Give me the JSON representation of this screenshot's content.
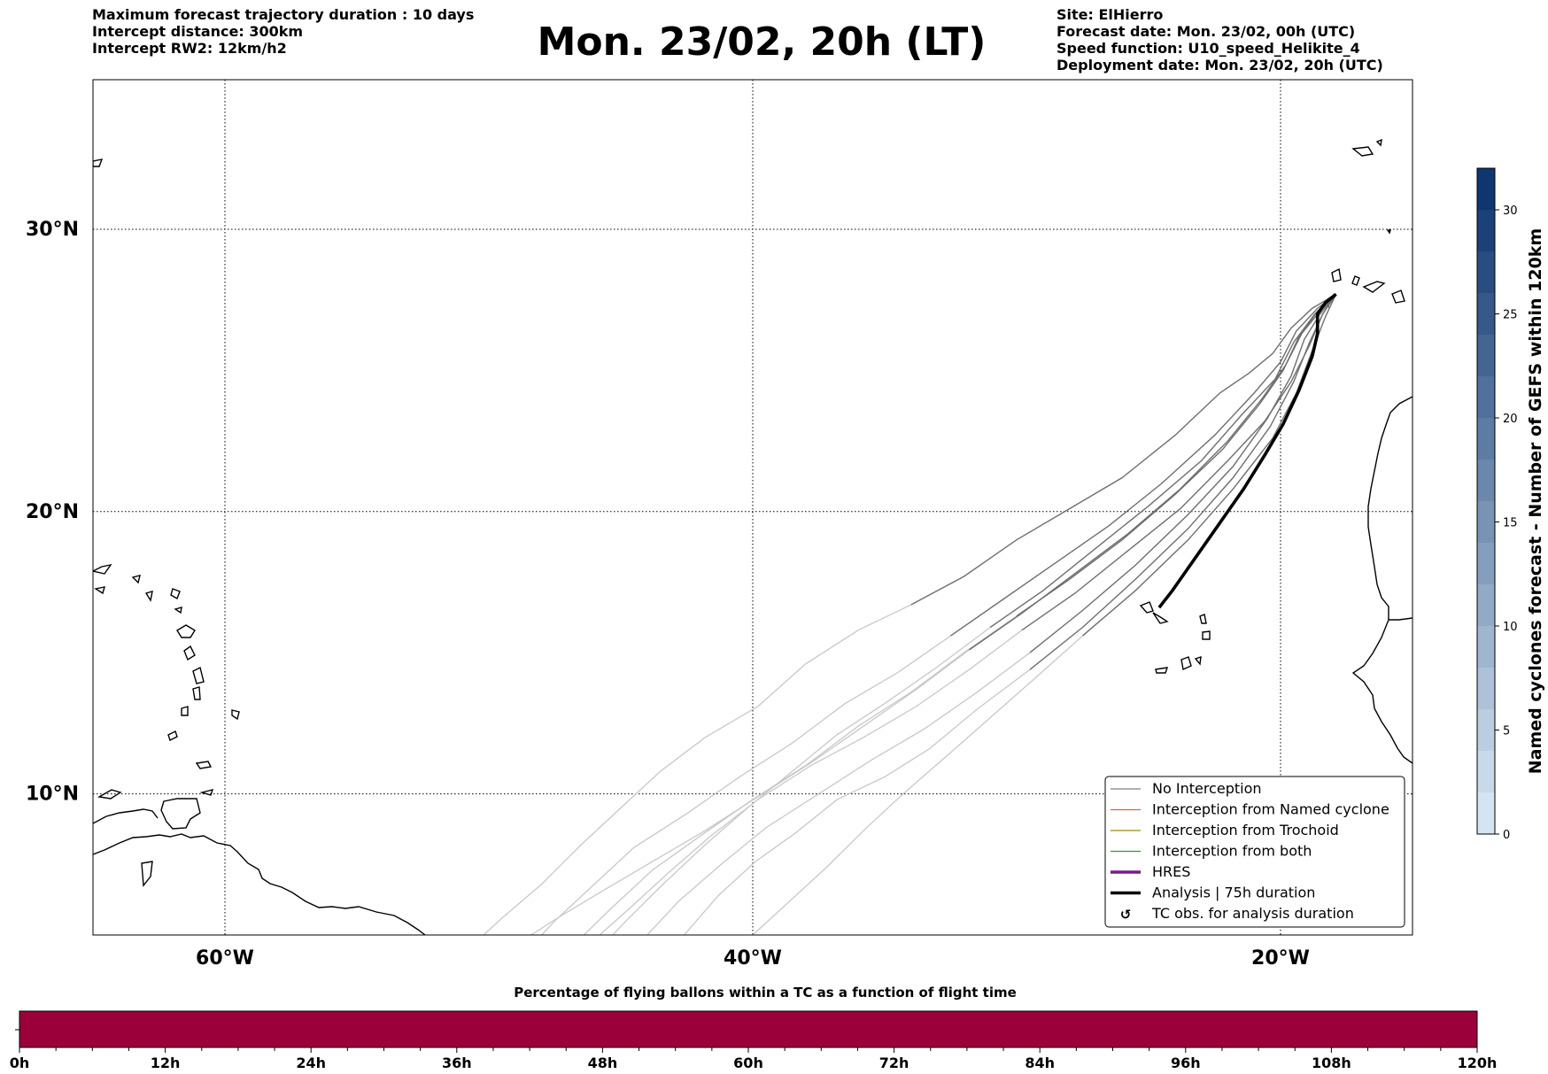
{
  "header": {
    "left_lines": [
      "Maximum forecast trajectory duration : 10 days",
      "Intercept distance: 300km",
      "Intercept RW2: 12km/h2"
    ],
    "title": "Mon. 23/02, 20h (LT)",
    "right_lines": [
      "Site: ElHierro",
      "Forecast date: Mon. 23/02, 00h (UTC)",
      "Speed function: U10_speed_Helikite_4",
      "Deployment date: Mon. 23/02, 20h (UTC)"
    ]
  },
  "map": {
    "lat_labels": [
      "30°N",
      "20°N",
      "10°N"
    ],
    "lat_values": [
      30,
      20,
      10
    ],
    "lon_labels": [
      "60°W",
      "40°W",
      "20°W"
    ],
    "lon_values": [
      -60,
      -40,
      -20
    ],
    "extent": {
      "lon_min": -65,
      "lon_max": -15,
      "lat_min": 5,
      "lat_max": 35.3
    },
    "gridlines": true,
    "trajectory_start": {
      "lon": -17.9,
      "lat": 27.7
    },
    "trajectories": [
      [
        [
          -17.9,
          27.7
        ],
        [
          -18.8,
          27.2
        ],
        [
          -19.6,
          26.5
        ],
        [
          -20.3,
          25.6
        ],
        [
          -21.2,
          24.9
        ],
        [
          -22.3,
          24.2
        ],
        [
          -24.0,
          22.7
        ],
        [
          -26.0,
          21.2
        ],
        [
          -28.0,
          20.1
        ],
        [
          -30.0,
          19.0
        ],
        [
          -32.0,
          17.7
        ],
        [
          -34.0,
          16.7
        ],
        [
          -36.0,
          15.8
        ],
        [
          -38.0,
          14.6
        ],
        [
          -39.8,
          13.1
        ],
        [
          -41.8,
          12.0
        ],
        [
          -43.5,
          10.8
        ],
        [
          -45.0,
          9.5
        ],
        [
          -46.5,
          8.2
        ],
        [
          -48.0,
          6.8
        ],
        [
          -49.5,
          5.6
        ],
        [
          -50.2,
          5.0
        ]
      ],
      [
        [
          -17.9,
          27.7
        ],
        [
          -18.6,
          27.2
        ],
        [
          -19.4,
          26.4
        ],
        [
          -20.0,
          25.3
        ],
        [
          -21.0,
          24.2
        ],
        [
          -22.5,
          22.7
        ],
        [
          -24.5,
          21.0
        ],
        [
          -26.5,
          19.5
        ],
        [
          -28.5,
          18.2
        ],
        [
          -30.5,
          16.9
        ],
        [
          -32.5,
          15.6
        ],
        [
          -34.5,
          14.3
        ],
        [
          -36.5,
          13.2
        ],
        [
          -38.5,
          11.8
        ],
        [
          -40.5,
          10.6
        ],
        [
          -42.5,
          9.3
        ],
        [
          -44.5,
          8.1
        ],
        [
          -46.0,
          6.8
        ],
        [
          -47.5,
          5.5
        ],
        [
          -48.0,
          5.0
        ]
      ],
      [
        [
          -17.9,
          27.7
        ],
        [
          -18.5,
          27.1
        ],
        [
          -19.3,
          26.2
        ],
        [
          -19.9,
          25.0
        ],
        [
          -20.8,
          23.8
        ],
        [
          -22.2,
          22.2
        ],
        [
          -24.0,
          20.6
        ],
        [
          -26.0,
          19.0
        ],
        [
          -28.0,
          17.6
        ],
        [
          -30.0,
          16.3
        ],
        [
          -32.0,
          15.0
        ],
        [
          -34.0,
          13.6
        ],
        [
          -36.0,
          12.4
        ],
        [
          -38.0,
          11.0
        ],
        [
          -40.0,
          9.8
        ],
        [
          -42.0,
          8.5
        ],
        [
          -43.8,
          7.3
        ],
        [
          -45.3,
          6.0
        ],
        [
          -46.4,
          5.0
        ]
      ],
      [
        [
          -17.9,
          27.7
        ],
        [
          -18.7,
          27.0
        ],
        [
          -19.5,
          26.0
        ],
        [
          -20.2,
          24.7
        ],
        [
          -21.5,
          23.4
        ],
        [
          -23.0,
          21.8
        ],
        [
          -25.0,
          20.2
        ],
        [
          -27.0,
          18.7
        ],
        [
          -29.0,
          17.2
        ],
        [
          -31.0,
          15.9
        ],
        [
          -33.0,
          14.5
        ],
        [
          -35.0,
          13.2
        ],
        [
          -36.8,
          12.1
        ],
        [
          -38.5,
          10.8
        ],
        [
          -40.2,
          9.5
        ],
        [
          -41.8,
          8.2
        ],
        [
          -43.4,
          6.8
        ],
        [
          -44.8,
          5.5
        ],
        [
          -45.3,
          5.0
        ]
      ],
      [
        [
          -17.9,
          27.7
        ],
        [
          -18.5,
          27.0
        ],
        [
          -19.1,
          26.1
        ],
        [
          -19.6,
          24.8
        ],
        [
          -20.5,
          23.3
        ],
        [
          -21.8,
          21.6
        ],
        [
          -23.5,
          19.9
        ],
        [
          -25.5,
          18.1
        ],
        [
          -27.5,
          16.5
        ],
        [
          -29.5,
          15.0
        ],
        [
          -31.5,
          13.6
        ],
        [
          -33.5,
          12.3
        ],
        [
          -35.5,
          11.2
        ],
        [
          -37.5,
          10.0
        ],
        [
          -39.5,
          8.8
        ],
        [
          -41.2,
          7.5
        ],
        [
          -42.8,
          6.2
        ],
        [
          -44.0,
          5.0
        ]
      ],
      [
        [
          -17.9,
          27.7
        ],
        [
          -18.4,
          27.0
        ],
        [
          -18.9,
          26.0
        ],
        [
          -19.5,
          24.6
        ],
        [
          -20.4,
          23.0
        ],
        [
          -21.8,
          21.2
        ],
        [
          -23.5,
          19.4
        ],
        [
          -25.5,
          17.6
        ],
        [
          -27.5,
          15.9
        ],
        [
          -29.5,
          14.4
        ],
        [
          -31.5,
          13.0
        ],
        [
          -33.3,
          11.6
        ],
        [
          -35.0,
          10.6
        ],
        [
          -36.8,
          9.8
        ],
        [
          -38.4,
          8.6
        ],
        [
          -39.9,
          7.6
        ],
        [
          -41.3,
          6.4
        ],
        [
          -42.6,
          5.0
        ]
      ],
      [
        [
          -17.9,
          27.7
        ],
        [
          -18.3,
          26.9
        ],
        [
          -18.8,
          25.7
        ],
        [
          -19.4,
          24.2
        ],
        [
          -20.3,
          22.6
        ],
        [
          -21.8,
          20.8
        ],
        [
          -23.5,
          19.0
        ],
        [
          -25.5,
          17.2
        ],
        [
          -27.5,
          15.6
        ],
        [
          -29.3,
          14.1
        ],
        [
          -31.0,
          12.7
        ],
        [
          -32.7,
          11.3
        ],
        [
          -34.3,
          10.0
        ],
        [
          -35.8,
          8.7
        ],
        [
          -37.2,
          7.4
        ],
        [
          -38.6,
          6.2
        ],
        [
          -40.0,
          5.0
        ]
      ],
      [
        [
          -17.9,
          27.7
        ],
        [
          -18.4,
          27.0
        ],
        [
          -18.9,
          25.9
        ],
        [
          -19.6,
          24.6
        ],
        [
          -20.6,
          23.2
        ],
        [
          -22.0,
          21.8
        ],
        [
          -23.8,
          20.1
        ],
        [
          -25.8,
          18.6
        ],
        [
          -27.8,
          17.1
        ],
        [
          -29.8,
          15.8
        ],
        [
          -31.8,
          14.4
        ],
        [
          -33.8,
          13.1
        ],
        [
          -35.8,
          12.0
        ],
        [
          -37.8,
          11.0
        ],
        [
          -39.8,
          9.8
        ],
        [
          -41.6,
          8.5
        ],
        [
          -43.2,
          7.2
        ],
        [
          -44.6,
          6.0
        ],
        [
          -45.8,
          5.0
        ]
      ],
      [
        [
          -17.9,
          27.7
        ],
        [
          -18.6,
          27.1
        ],
        [
          -19.2,
          26.3
        ],
        [
          -19.8,
          25.2
        ],
        [
          -20.7,
          24.0
        ],
        [
          -22.0,
          22.5
        ],
        [
          -23.8,
          20.8
        ],
        [
          -25.8,
          19.2
        ],
        [
          -27.8,
          17.8
        ],
        [
          -29.8,
          16.4
        ],
        [
          -31.8,
          15.1
        ],
        [
          -33.8,
          13.7
        ],
        [
          -35.8,
          12.4
        ],
        [
          -37.8,
          11.1
        ],
        [
          -39.8,
          9.9
        ],
        [
          -41.8,
          8.7
        ],
        [
          -43.8,
          7.6
        ],
        [
          -45.8,
          6.5
        ],
        [
          -47.4,
          5.6
        ],
        [
          -48.4,
          5.0
        ]
      ]
    ],
    "analysis_track": [
      [
        -17.9,
        27.7
      ],
      [
        -18.3,
        27.4
      ],
      [
        -18.6,
        27.0
      ],
      [
        -18.6,
        26.3
      ],
      [
        -18.8,
        25.5
      ],
      [
        -19.3,
        24.3
      ],
      [
        -19.9,
        23.1
      ],
      [
        -20.6,
        22.0
      ],
      [
        -21.4,
        20.8
      ],
      [
        -22.3,
        19.6
      ],
      [
        -23.2,
        18.4
      ],
      [
        -24.1,
        17.2
      ],
      [
        -24.6,
        16.6
      ]
    ],
    "dark_fraction": 0.55
  },
  "legend": {
    "items": [
      {
        "label": "No Interception",
        "color": "#808080",
        "width": 1.2,
        "kind": "line"
      },
      {
        "label": "Interception from Named cyclone",
        "color": "#e8603c",
        "width": 1.2,
        "kind": "line"
      },
      {
        "label": "Interception from Trochoid",
        "color": "#9a8a1a",
        "width": 1.2,
        "kind": "line"
      },
      {
        "label": "Interception from both",
        "color": "#2e9a2e",
        "width": 1.2,
        "kind": "line"
      },
      {
        "label": "HRES",
        "color": "#7a1a8a",
        "width": 3.5,
        "kind": "line"
      },
      {
        "label": "Analysis | 75h duration",
        "color": "#000000",
        "width": 3.5,
        "kind": "line"
      },
      {
        "label": "TC obs. for analysis duration",
        "color": "#000000",
        "width": 1,
        "kind": "marker"
      }
    ]
  },
  "colorbar": {
    "label": "Named cyclones forecast - Number of GEFS within 120km",
    "ticks": [
      0,
      5,
      10,
      15,
      20,
      25,
      30
    ],
    "max": 32,
    "color_low": "#dceaf6",
    "color_high": "#08306b"
  },
  "timebar": {
    "title": "Percentage of flying ballons within a TC as a function of flight time",
    "ticks": [
      "0h",
      "12h",
      "24h",
      "36h",
      "48h",
      "60h",
      "72h",
      "84h",
      "96h",
      "108h",
      "120h"
    ],
    "fill_color": "#9b003a"
  }
}
